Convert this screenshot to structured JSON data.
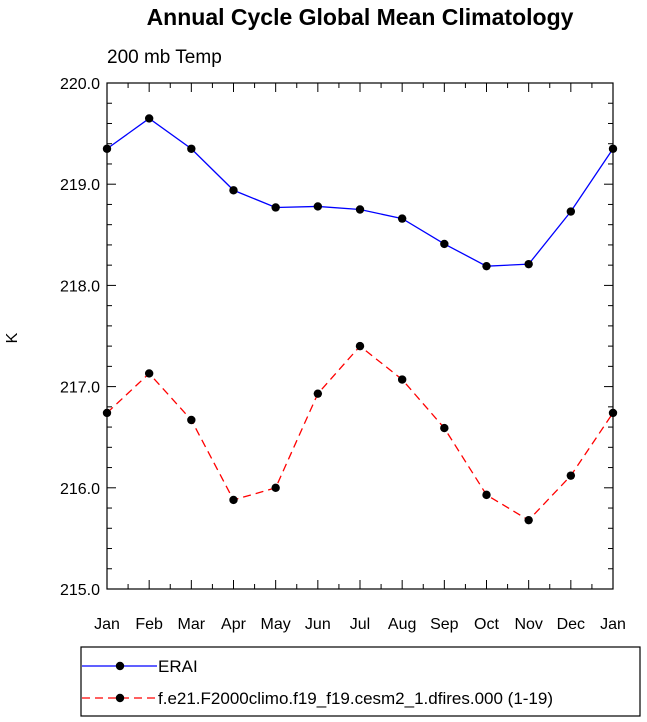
{
  "chart_data": {
    "type": "line",
    "title": "Annual Cycle Global Mean Climatology",
    "subtitle": "200 mb Temp",
    "xlabel": "",
    "ylabel": "K",
    "categories": [
      "Jan",
      "Feb",
      "Mar",
      "Apr",
      "May",
      "Jun",
      "Jul",
      "Aug",
      "Sep",
      "Oct",
      "Nov",
      "Dec",
      "Jan"
    ],
    "yticks": [
      "215.0",
      "216.0",
      "217.0",
      "218.0",
      "219.0",
      "220.0"
    ],
    "ylim": [
      215.0,
      220.0
    ],
    "grid": false,
    "legend_position": "bottom",
    "series": [
      {
        "name": "ERAI",
        "color": "#0000ff",
        "dash": "solid",
        "values": [
          219.35,
          219.65,
          219.35,
          218.94,
          218.77,
          218.78,
          218.75,
          218.66,
          218.41,
          218.19,
          218.21,
          218.73,
          219.35
        ]
      },
      {
        "name": "f.e21.F2000climo.f19_f19.cesm2_1.dfires.000 (1-19)",
        "color": "#ff0000",
        "dash": "dashed",
        "values": [
          216.74,
          217.13,
          216.67,
          215.88,
          216.0,
          216.93,
          217.4,
          217.07,
          216.59,
          215.93,
          215.68,
          216.12,
          216.74
        ]
      }
    ]
  }
}
